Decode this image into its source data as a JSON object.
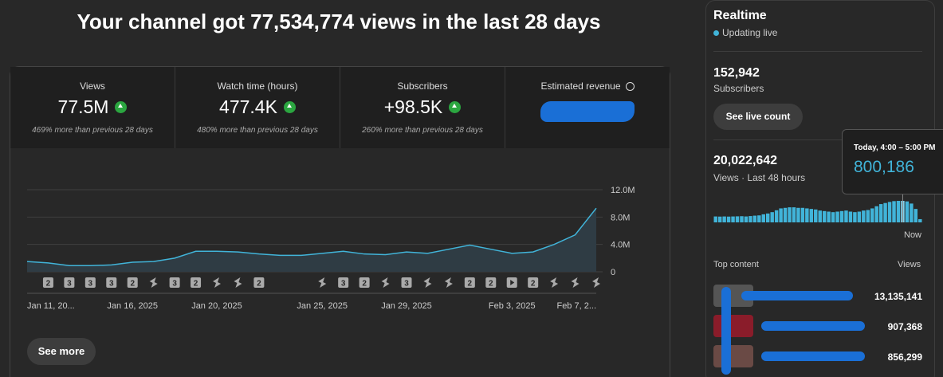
{
  "header": {
    "title": "Your channel got 77,534,774 views in the last 28 days"
  },
  "metrics": [
    {
      "label": "Views",
      "value": "77.5M",
      "change": "469% more than previous 28 days"
    },
    {
      "label": "Watch time (hours)",
      "value": "477.4K",
      "change": "480% more than previous 28 days"
    },
    {
      "label": "Subscribers",
      "value": "+98.5K",
      "change": "260% more than previous 28 days"
    },
    {
      "label": "Estimated revenue"
    }
  ],
  "chart_data": {
    "type": "line",
    "categories": [
      "Jan 11, 20...",
      null,
      null,
      null,
      null,
      "Jan 16, 2025",
      null,
      null,
      null,
      "Jan 20, 2025",
      null,
      null,
      null,
      null,
      "Jan 25, 2025",
      null,
      null,
      null,
      "Jan 29, 2025",
      null,
      null,
      null,
      null,
      "Feb 3, 2025",
      null,
      null,
      null,
      "Feb 7, 2..."
    ],
    "values": [
      1500000,
      1300000,
      900000,
      900000,
      1000000,
      1400000,
      1500000,
      2000000,
      3000000,
      3000000,
      2900000,
      2600000,
      2400000,
      2400000,
      2700000,
      3000000,
      2600000,
      2500000,
      2900000,
      2700000,
      3300000,
      3900000,
      3300000,
      2700000,
      2900000,
      4000000,
      5400000,
      9300000
    ],
    "color": "#41b4d9",
    "ylim": [
      0,
      12000000
    ],
    "yticks": [
      0,
      {
        "value": 4000000,
        "label": "4.0M"
      },
      {
        "value": 8000000,
        "label": "8.0M"
      },
      {
        "value": 12000000,
        "label": "12.0M"
      }
    ],
    "grid": true
  },
  "markers": [
    null,
    "2",
    "3",
    "3",
    "3",
    "2",
    null,
    "3",
    "2",
    null,
    null,
    "2",
    null,
    null,
    null,
    "3",
    "2",
    null,
    "3",
    null,
    null,
    "2",
    "2",
    null,
    "2",
    null,
    null,
    null
  ],
  "see_more": "See more",
  "realtime": {
    "title": "Realtime",
    "status": "Updating live",
    "subscribers": {
      "value": "152,942",
      "label": "Subscribers"
    },
    "button": "See live count",
    "views": {
      "value": "20,022,642",
      "label": "Views · Last 48 hours"
    },
    "chart": {
      "type": "bar",
      "color": "#41b4d9",
      "end_label": "Now",
      "highlight": 43,
      "values": [
        220000,
        215000,
        220000,
        215000,
        220000,
        225000,
        230000,
        220000,
        235000,
        250000,
        260000,
        300000,
        330000,
        380000,
        450000,
        520000,
        540000,
        560000,
        560000,
        540000,
        540000,
        520000,
        500000,
        480000,
        440000,
        420000,
        400000,
        380000,
        400000,
        420000,
        440000,
        400000,
        380000,
        400000,
        440000,
        460000,
        520000,
        600000,
        680000,
        720000,
        760000,
        790000,
        800000,
        800186,
        780000,
        700000,
        500000,
        120000
      ]
    },
    "tooltip": {
      "title": "Today, 4:00 – 5:00 PM",
      "value": "800,186"
    },
    "top_content": {
      "header": "Top content",
      "views_header": "Views",
      "rows": [
        {
          "views": "13,135,141"
        },
        {
          "views": "907,368"
        },
        {
          "views": "856,299"
        }
      ]
    }
  }
}
